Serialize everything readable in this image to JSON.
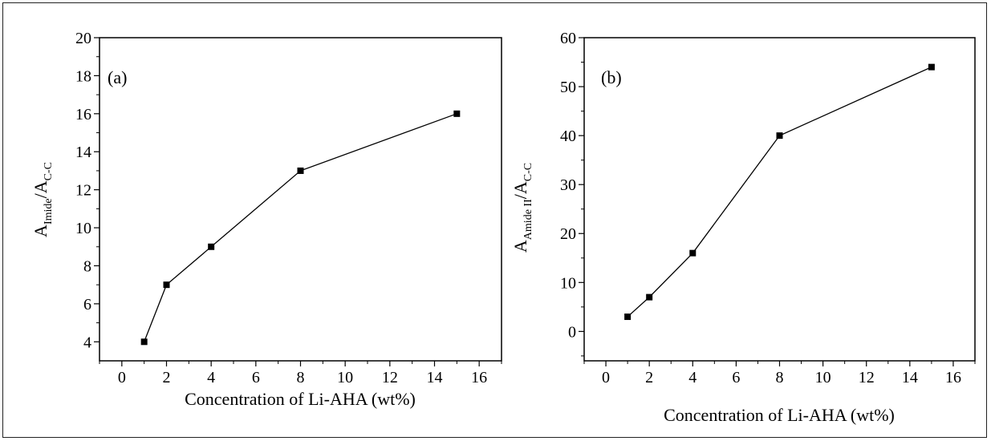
{
  "chart_data": [
    {
      "type": "line",
      "panel_label": "(a)",
      "xlabel": "Concentration of Li-AHA (wt%)",
      "ylabel_parts": {
        "a1": "A",
        "s1": "Imide",
        "sep": "/A",
        "s2": "C-C"
      },
      "xlim": [
        -1,
        17
      ],
      "ylim": [
        3,
        20
      ],
      "xticks": [
        0,
        2,
        4,
        6,
        8,
        10,
        12,
        14,
        16
      ],
      "yticks": [
        4,
        6,
        8,
        10,
        12,
        14,
        16,
        18,
        20
      ],
      "x": [
        1,
        2,
        4,
        8,
        15
      ],
      "y": [
        4.0,
        7.0,
        9.0,
        13.0,
        16.0
      ],
      "marker": "square",
      "color": "#000000"
    },
    {
      "type": "line",
      "panel_label": "(b)",
      "xlabel": "Concentration of Li-AHA (wt%)",
      "ylabel_parts": {
        "a1": "A",
        "s1": "Amide II",
        "sep": "/A",
        "s2": "C-C"
      },
      "xlim": [
        -1,
        17
      ],
      "ylim": [
        -6,
        60
      ],
      "xticks": [
        0,
        2,
        4,
        6,
        8,
        10,
        12,
        14,
        16
      ],
      "yticks": [
        0,
        10,
        20,
        30,
        40,
        50,
        60
      ],
      "x": [
        1,
        2,
        4,
        8,
        15
      ],
      "y": [
        3.0,
        7.0,
        16.0,
        40.0,
        54.0
      ],
      "marker": "square",
      "color": "#000000"
    }
  ]
}
